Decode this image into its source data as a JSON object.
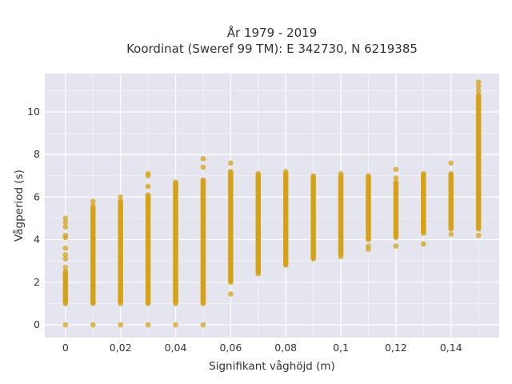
{
  "chart_data": {
    "type": "scatter",
    "title_line1": "År 1979 - 2019",
    "title_line2": "Koordinat (Sweref 99 TM): E 342730, N 6219385",
    "xlabel": "Signifikant våghöjd (m)",
    "ylabel": "Vågperiod (s)",
    "xlim": [
      -0.0075,
      0.1575
    ],
    "ylim": [
      -0.6,
      11.8
    ],
    "x_ticks": [
      0,
      0.02,
      0.04,
      0.06,
      0.08,
      0.1,
      0.12,
      0.14
    ],
    "x_tick_labels": [
      "0",
      "0,02",
      "0,04",
      "0,06",
      "0,08",
      "0,1",
      "0,12",
      "0,14"
    ],
    "y_ticks": [
      0,
      2,
      4,
      6,
      8,
      10
    ],
    "y_tick_labels": [
      "0",
      "2",
      "4",
      "6",
      "8",
      "10"
    ],
    "grid": true,
    "marker_color": "#D4A217",
    "plot_bg": "#E5E5EF",
    "columns": [
      {
        "x": 0.0,
        "y_min": 1.0,
        "y_max": 2.5,
        "extra": [
          0,
          2.7,
          3.1,
          3.3,
          3.6,
          4.1,
          4.2,
          4.6,
          4.8,
          5.0
        ]
      },
      {
        "x": 0.01,
        "y_min": 1.0,
        "y_max": 5.5,
        "extra": [
          0,
          5.6,
          5.8
        ]
      },
      {
        "x": 0.02,
        "y_min": 1.0,
        "y_max": 5.8,
        "extra": [
          0,
          6.0
        ]
      },
      {
        "x": 0.03,
        "y_min": 1.0,
        "y_max": 6.1,
        "extra": [
          0,
          6.5,
          7.0,
          7.1
        ]
      },
      {
        "x": 0.04,
        "y_min": 1.0,
        "y_max": 6.7,
        "extra": [
          0
        ]
      },
      {
        "x": 0.05,
        "y_min": 1.0,
        "y_max": 6.8,
        "extra": [
          0,
          7.4,
          7.8
        ]
      },
      {
        "x": 0.06,
        "y_min": 2.0,
        "y_max": 7.2,
        "extra": [
          1.45,
          7.6
        ]
      },
      {
        "x": 0.07,
        "y_min": 2.4,
        "y_max": 7.1,
        "extra": []
      },
      {
        "x": 0.08,
        "y_min": 2.8,
        "y_max": 7.1,
        "extra": [
          7.2
        ]
      },
      {
        "x": 0.09,
        "y_min": 3.1,
        "y_max": 7.0,
        "extra": []
      },
      {
        "x": 0.1,
        "y_min": 3.3,
        "y_max": 7.0,
        "extra": [
          3.2,
          7.1
        ]
      },
      {
        "x": 0.11,
        "y_min": 4.0,
        "y_max": 7.0,
        "extra": [
          3.55,
          3.7
        ]
      },
      {
        "x": 0.12,
        "y_min": 4.1,
        "y_max": 6.7,
        "extra": [
          3.7,
          6.9,
          7.3
        ]
      },
      {
        "x": 0.13,
        "y_min": 4.3,
        "y_max": 7.1,
        "extra": [
          3.8
        ]
      },
      {
        "x": 0.14,
        "y_min": 4.5,
        "y_max": 7.1,
        "extra": [
          4.25,
          7.6
        ]
      },
      {
        "x": 0.15,
        "y_min": 4.5,
        "y_max": 10.8,
        "extra": [
          4.2,
          11.0,
          11.2,
          11.4
        ]
      }
    ]
  }
}
